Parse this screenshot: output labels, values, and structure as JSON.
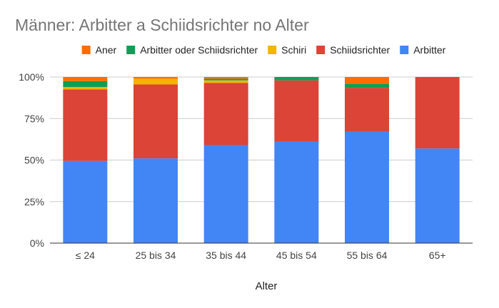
{
  "chart_data": {
    "type": "bar",
    "stacked": "percent",
    "title": "Männer: Arbitter a Schiidsrichter no Alter",
    "xlabel": "Alter",
    "ylabel": "",
    "categories": [
      "≤ 24",
      "25 bis 34",
      "35 bis 44",
      "45 bis 54",
      "55 bis 64",
      "65+"
    ],
    "y_ticks": [
      "0%",
      "25%",
      "50%",
      "75%",
      "100%"
    ],
    "ylim": [
      0,
      100
    ],
    "legend_position": "top",
    "legend_order": [
      "Aner",
      "Arbitter oder Schiidsrichter",
      "Schiri",
      "Schiidsrichter",
      "Arbitter"
    ],
    "series": [
      {
        "name": "Arbitter",
        "color": "#4285f4",
        "values": [
          49.5,
          51,
          59,
          61,
          67,
          57
        ]
      },
      {
        "name": "Schiidsrichter",
        "color": "#db4437",
        "values": [
          43,
          44.5,
          37.5,
          37,
          26.5,
          43
        ]
      },
      {
        "name": "Schiri",
        "color": "#f4b400",
        "values": [
          1.5,
          3.5,
          1.5,
          0,
          0,
          0
        ]
      },
      {
        "name": "Arbitter oder Schiidsrichter",
        "color": "#0f9d58",
        "values": [
          3.5,
          0,
          1,
          2,
          2.5,
          0
        ]
      },
      {
        "name": "Aner",
        "color": "#ff6d01",
        "values": [
          2.5,
          1,
          1,
          0,
          4,
          0
        ]
      }
    ]
  }
}
